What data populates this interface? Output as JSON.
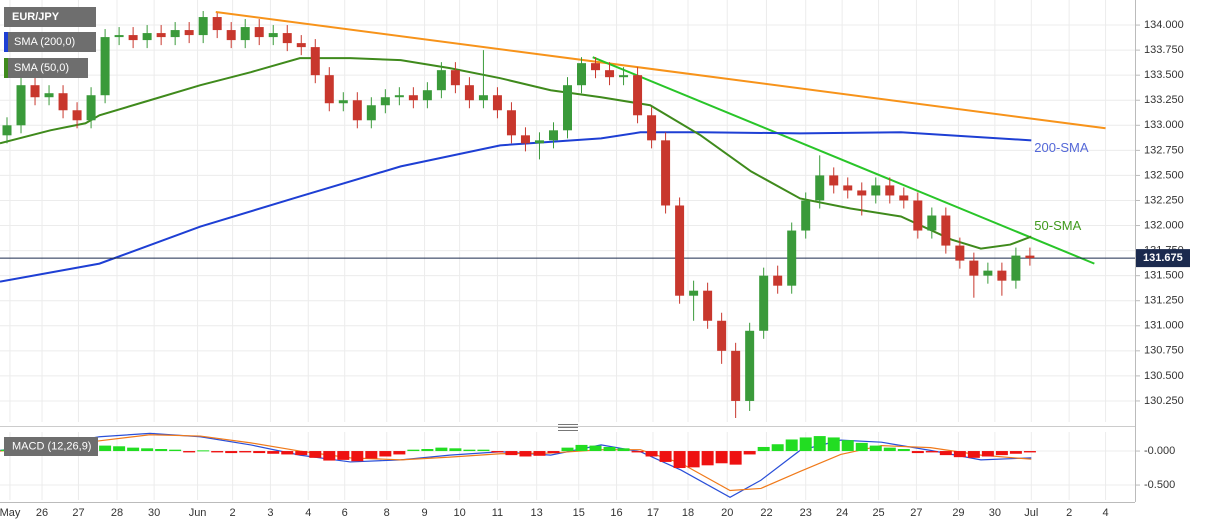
{
  "chart_data": [
    {
      "type": "candlestick",
      "title": "EUR/JPY",
      "up_color": "#3a9a3a",
      "down_color": "#c8372d",
      "xlim": [
        -0.5,
        80.5
      ],
      "ylim": [
        130.04,
        134.25
      ],
      "yticks": [
        {
          "value": 130.25,
          "label": "130.250"
        },
        {
          "value": 130.5,
          "label": "130.500"
        },
        {
          "value": 130.75,
          "label": "130.750"
        },
        {
          "value": 131,
          "label": "131.000"
        },
        {
          "value": 131.25,
          "label": "131.250"
        },
        {
          "value": 131.5,
          "label": "131.500"
        },
        {
          "value": 131.75,
          "label": "131.750"
        },
        {
          "value": 132,
          "label": "132.000"
        },
        {
          "value": 132.25,
          "label": "132.250"
        },
        {
          "value": 132.5,
          "label": "132.500"
        },
        {
          "value": 132.75,
          "label": "132.750"
        },
        {
          "value": 133,
          "label": "133.000"
        },
        {
          "value": 133.25,
          "label": "133.250"
        },
        {
          "value": 133.5,
          "label": "133.500"
        },
        {
          "value": 133.75,
          "label": "133.750"
        },
        {
          "value": 134,
          "label": "134.000"
        }
      ],
      "grid": true,
      "x": [
        0,
        1,
        2,
        3,
        4,
        5,
        6,
        7,
        8,
        9,
        10,
        11,
        12,
        13,
        14,
        15,
        16,
        17,
        18,
        19,
        20,
        21,
        22,
        23,
        24,
        25,
        26,
        27,
        28,
        29,
        30,
        31,
        32,
        33,
        34,
        35,
        36,
        37,
        38,
        39,
        40,
        41,
        42,
        43,
        44,
        45,
        46,
        47,
        48,
        49,
        50,
        51,
        52,
        53,
        54,
        55,
        56,
        57,
        58,
        59,
        60,
        61,
        62,
        63,
        64,
        65,
        66,
        67,
        68,
        69,
        70,
        71,
        72,
        73
      ],
      "open": [
        132.9,
        133.0,
        133.4,
        133.28,
        133.32,
        133.15,
        133.05,
        133.3,
        133.88,
        133.9,
        133.85,
        133.92,
        133.88,
        133.95,
        133.9,
        134.08,
        133.95,
        133.85,
        133.98,
        133.88,
        133.92,
        133.82,
        133.78,
        133.5,
        133.22,
        133.25,
        133.05,
        133.2,
        133.28,
        133.3,
        133.25,
        133.35,
        133.55,
        133.4,
        133.25,
        133.3,
        133.15,
        132.9,
        132.82,
        132.85,
        132.95,
        133.4,
        133.62,
        133.55,
        133.48,
        133.5,
        133.1,
        132.85,
        132.2,
        131.3,
        131.35,
        131.05,
        130.75,
        130.25,
        130.95,
        131.5,
        131.4,
        131.95,
        132.25,
        132.5,
        132.4,
        132.35,
        132.3,
        132.4,
        132.3,
        132.25,
        131.95,
        132.1,
        131.8,
        131.65,
        131.5,
        131.55,
        131.45,
        131.7
      ],
      "high": [
        133.08,
        133.48,
        133.48,
        133.4,
        133.4,
        133.23,
        133.38,
        133.96,
        133.98,
        133.98,
        134.0,
        134.0,
        134.03,
        134.03,
        134.14,
        134.12,
        134.03,
        134.06,
        134.06,
        134.0,
        134.0,
        133.9,
        133.86,
        133.58,
        133.33,
        133.33,
        133.28,
        133.36,
        133.38,
        133.38,
        133.43,
        133.63,
        133.63,
        133.48,
        133.75,
        133.38,
        133.23,
        132.98,
        132.93,
        133.03,
        133.48,
        133.68,
        133.68,
        133.63,
        133.58,
        133.58,
        133.18,
        132.93,
        132.28,
        131.45,
        131.43,
        131.13,
        130.83,
        131.03,
        131.58,
        131.6,
        132.03,
        132.33,
        132.7,
        132.58,
        132.48,
        132.43,
        132.48,
        132.48,
        132.38,
        132.33,
        132.18,
        132.18,
        131.88,
        131.73,
        131.63,
        131.63,
        131.78,
        131.78
      ],
      "low": [
        132.82,
        132.92,
        133.2,
        133.2,
        133.07,
        132.97,
        132.97,
        133.22,
        133.8,
        133.77,
        133.77,
        133.8,
        133.8,
        133.82,
        133.82,
        133.87,
        133.77,
        133.77,
        133.8,
        133.8,
        133.74,
        133.7,
        133.42,
        133.14,
        133.14,
        132.97,
        132.97,
        133.12,
        133.2,
        133.17,
        133.17,
        133.27,
        133.32,
        133.17,
        133.17,
        133.07,
        132.82,
        132.74,
        132.66,
        132.77,
        132.87,
        133.32,
        133.47,
        133.4,
        133.4,
        133.02,
        132.77,
        132.12,
        131.22,
        131.05,
        130.97,
        130.62,
        130.08,
        130.15,
        130.87,
        131.32,
        131.32,
        131.87,
        132.17,
        132.32,
        132.27,
        132.1,
        132.22,
        132.22,
        132.17,
        131.87,
        131.87,
        131.72,
        131.57,
        131.28,
        131.42,
        131.3,
        131.37,
        131.6
      ],
      "close": [
        133.0,
        133.4,
        133.28,
        133.32,
        133.15,
        133.05,
        133.3,
        133.88,
        133.9,
        133.85,
        133.92,
        133.88,
        133.95,
        133.9,
        134.08,
        133.95,
        133.85,
        133.98,
        133.88,
        133.92,
        133.82,
        133.78,
        133.5,
        133.22,
        133.25,
        133.05,
        133.2,
        133.28,
        133.3,
        133.25,
        133.35,
        133.55,
        133.4,
        133.25,
        133.3,
        133.15,
        132.9,
        132.82,
        132.85,
        132.95,
        133.4,
        133.62,
        133.55,
        133.48,
        133.5,
        133.1,
        132.85,
        132.2,
        131.3,
        131.35,
        131.05,
        130.75,
        130.25,
        130.95,
        131.5,
        131.4,
        131.95,
        132.25,
        132.5,
        132.4,
        132.35,
        132.3,
        132.4,
        132.3,
        132.25,
        131.95,
        132.1,
        131.8,
        131.65,
        131.5,
        131.55,
        131.45,
        131.7,
        131.675
      ],
      "series": [
        {
          "name": "SMA (200,0)",
          "label": "200-SMA",
          "color": "#1e3fd4",
          "label_color": "#5468d8",
          "x": [
            -0.5,
            6.6,
            13.8,
            20.9,
            28.1,
            35.2,
            42.4,
            45.2,
            49.5,
            56.6,
            63.8,
            73.1
          ],
          "values": [
            131.44,
            131.62,
            131.99,
            132.29,
            132.59,
            132.8,
            132.87,
            132.93,
            132.93,
            132.92,
            132.93,
            132.85
          ]
        },
        {
          "name": "SMA (50,0)",
          "label": "50-SMA",
          "color": "#3f8a1c",
          "label_color": "#3f9a1c",
          "x": [
            -0.5,
            3.1,
            5.6,
            6.6,
            10.2,
            13.8,
            17.4,
            20.9,
            24.5,
            28.1,
            31.6,
            35.2,
            38.8,
            42.4,
            45.9,
            49.5,
            53.1,
            56.6,
            60.2,
            63.8,
            67.4,
            69.5,
            71.6,
            73.1
          ],
          "values": [
            132.82,
            132.95,
            133.02,
            133.1,
            133.25,
            133.4,
            133.53,
            133.67,
            133.67,
            133.65,
            133.57,
            133.47,
            133.35,
            133.28,
            133.2,
            132.9,
            132.54,
            132.27,
            132.17,
            132.09,
            131.86,
            131.77,
            131.81,
            131.89
          ]
        }
      ],
      "trendlines": [
        {
          "color": "#f7931a",
          "x": [
            14.9,
            78.4
          ],
          "values": [
            134.13,
            132.97
          ]
        },
        {
          "color": "#29c529",
          "x": [
            41.8,
            77.6
          ],
          "values": [
            133.68,
            131.62
          ]
        }
      ],
      "last_price": 131.675,
      "last_price_color": "#1b2a4e"
    },
    {
      "type": "macd",
      "title": "MACD (12,26,9)",
      "hist_up_color": "#22dd22",
      "hist_down_color": "#ee1111",
      "xlim": [
        -0.5,
        80.5
      ],
      "xticks": [
        {
          "value": 0.21,
          "label": "May"
        },
        {
          "value": 2.5,
          "label": "26"
        },
        {
          "value": 5.1,
          "label": "27"
        },
        {
          "value": 7.85,
          "label": "28"
        },
        {
          "value": 10.5,
          "label": "30"
        },
        {
          "value": 13.6,
          "label": "Jun"
        },
        {
          "value": 16.1,
          "label": "2"
        },
        {
          "value": 18.8,
          "label": "3"
        },
        {
          "value": 21.5,
          "label": "4"
        },
        {
          "value": 24.1,
          "label": "6"
        },
        {
          "value": 27.1,
          "label": "8"
        },
        {
          "value": 29.8,
          "label": "9"
        },
        {
          "value": 32.3,
          "label": "10"
        },
        {
          "value": 35.0,
          "label": "11"
        },
        {
          "value": 37.8,
          "label": "13"
        },
        {
          "value": 40.8,
          "label": "15"
        },
        {
          "value": 43.5,
          "label": "16"
        },
        {
          "value": 46.1,
          "label": "17"
        },
        {
          "value": 48.6,
          "label": "18"
        },
        {
          "value": 51.4,
          "label": "20"
        },
        {
          "value": 54.2,
          "label": "22"
        },
        {
          "value": 57.0,
          "label": "23"
        },
        {
          "value": 59.6,
          "label": "24"
        },
        {
          "value": 62.2,
          "label": "25"
        },
        {
          "value": 64.9,
          "label": "27"
        },
        {
          "value": 67.9,
          "label": "29"
        },
        {
          "value": 70.5,
          "label": "30"
        },
        {
          "value": 73.1,
          "label": "Jul"
        },
        {
          "value": 75.8,
          "label": "2"
        },
        {
          "value": 78.4,
          "label": "4"
        }
      ],
      "ylim": [
        -0.72,
        0.28
      ],
      "yticks": [
        {
          "value": 0,
          "label": "-0.000"
        },
        {
          "value": -0.5,
          "label": "-0.500"
        }
      ],
      "histogram": [
        0.02,
        0.03,
        0.01,
        -0.01,
        -0.03,
        -0.02,
        0.05,
        0.08,
        0.07,
        0.05,
        0.04,
        0.03,
        0.02,
        -0.02,
        0.01,
        -0.02,
        -0.03,
        -0.02,
        -0.03,
        -0.04,
        -0.05,
        -0.06,
        -0.1,
        -0.14,
        -0.13,
        -0.15,
        -0.11,
        -0.08,
        -0.05,
        0.02,
        0.03,
        0.05,
        0.04,
        0.02,
        0.02,
        -0.02,
        -0.06,
        -0.08,
        -0.07,
        -0.03,
        0.05,
        0.09,
        0.08,
        0.06,
        0.04,
        -0.02,
        -0.08,
        -0.16,
        -0.25,
        -0.24,
        -0.21,
        -0.18,
        -0.2,
        -0.05,
        0.06,
        0.1,
        0.17,
        0.2,
        0.22,
        0.2,
        0.16,
        0.12,
        0.08,
        0.05,
        0.03,
        -0.03,
        -0.02,
        -0.06,
        -0.09,
        -0.1,
        -0.08,
        -0.06,
        -0.04,
        -0.02
      ],
      "series": [
        {
          "color": "#2a4fd8",
          "x": [
            -0.5,
            3.1,
            6.6,
            10.2,
            13.8,
            17.4,
            20.9,
            24.5,
            28.1,
            31.6,
            35.2,
            38.8,
            42.4,
            45.2,
            48.1,
            51.6,
            53.8,
            56.6,
            59.5,
            62.4,
            65.9,
            69.5,
            73.1
          ],
          "values": [
            0.01,
            0.09,
            0.21,
            0.26,
            0.21,
            0.09,
            -0.06,
            -0.16,
            -0.13,
            -0.06,
            -0.01,
            -0.06,
            0.09,
            -0.01,
            -0.28,
            -0.68,
            -0.43,
            0.01,
            0.16,
            0.13,
            0.01,
            -0.13,
            -0.1
          ]
        },
        {
          "color": "#f07a1a",
          "x": [
            -0.5,
            3.1,
            6.6,
            10.2,
            13.8,
            17.4,
            20.9,
            24.5,
            28.1,
            31.6,
            35.2,
            38.8,
            42.4,
            45.2,
            48.1,
            51.6,
            53.8,
            56.6,
            59.5,
            62.4,
            65.9,
            69.5,
            73.1
          ],
          "values": [
            0.0,
            0.05,
            0.15,
            0.24,
            0.22,
            0.12,
            0.0,
            -0.1,
            -0.13,
            -0.09,
            -0.04,
            -0.03,
            0.02,
            0.02,
            -0.18,
            -0.58,
            -0.55,
            -0.3,
            -0.05,
            0.08,
            0.05,
            -0.06,
            -0.12
          ]
        }
      ]
    }
  ]
}
